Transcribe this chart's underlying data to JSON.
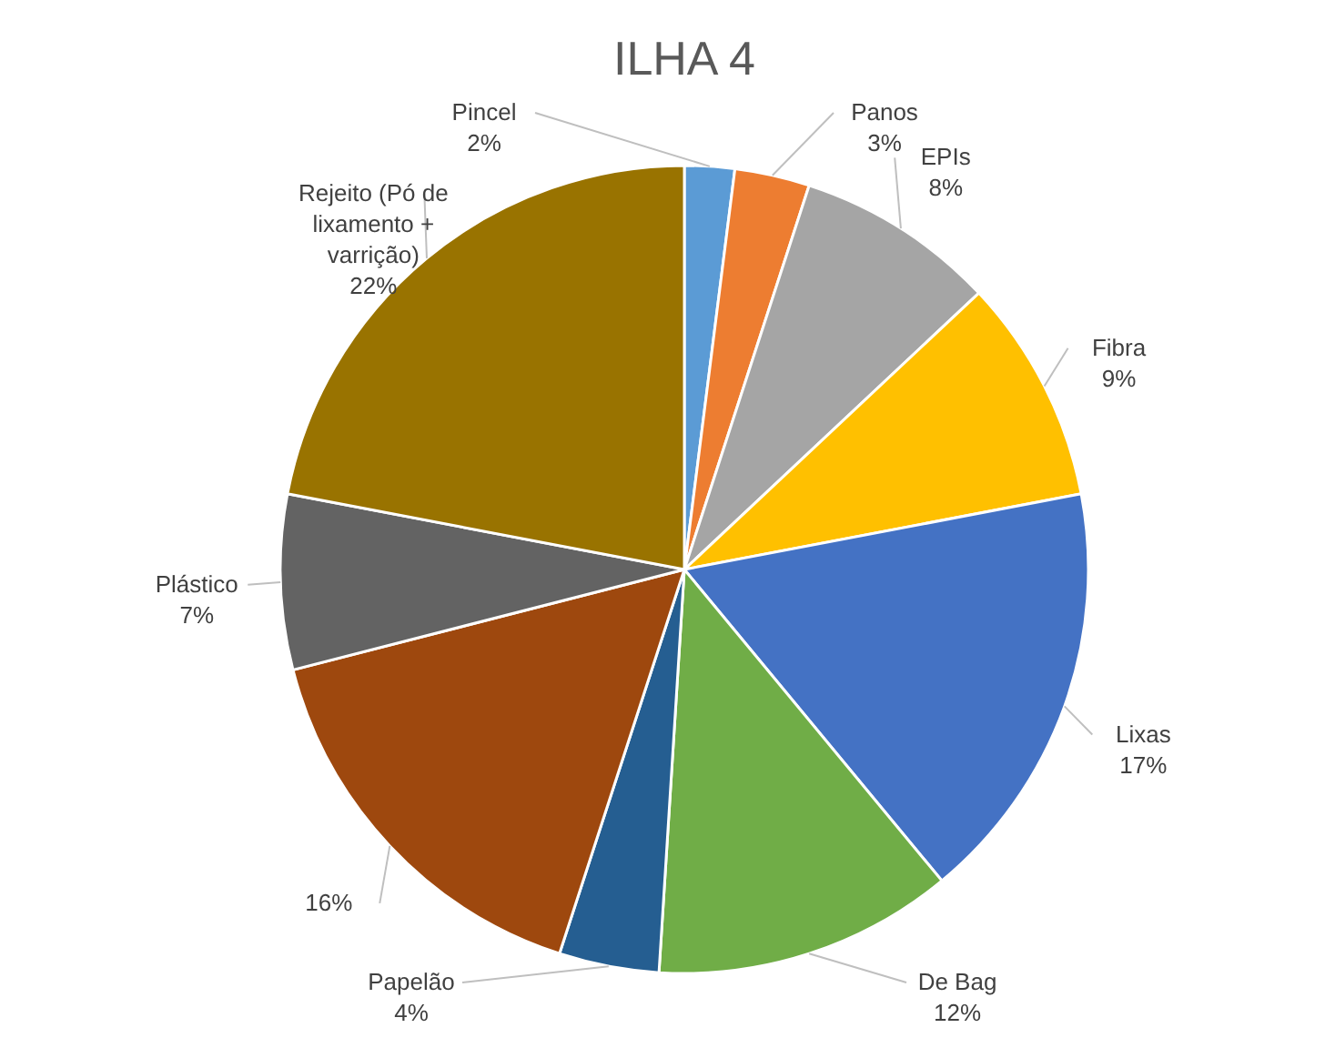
{
  "chart_data": {
    "type": "pie",
    "title": "ILHA 4",
    "categories": [
      "Pincel",
      "Panos",
      "EPIs",
      "Fibra",
      "Lixas",
      "De Bag",
      "Papelão",
      null,
      "Plástico",
      "Rejeito (Pó de lixamento + varrição)"
    ],
    "values": [
      2,
      3,
      8,
      9,
      17,
      12,
      4,
      16,
      7,
      22
    ],
    "value_labels": [
      "2%",
      "3%",
      "8%",
      "9%",
      "17%",
      "12%",
      "4%",
      "16%",
      "7%",
      "22%"
    ],
    "colors": [
      "#5b9bd5",
      "#ed7d31",
      "#a5a5a5",
      "#ffc000",
      "#4472c4",
      "#70ad47",
      "#255e91",
      "#9e480e",
      "#636363",
      "#997300"
    ],
    "legend": false
  }
}
